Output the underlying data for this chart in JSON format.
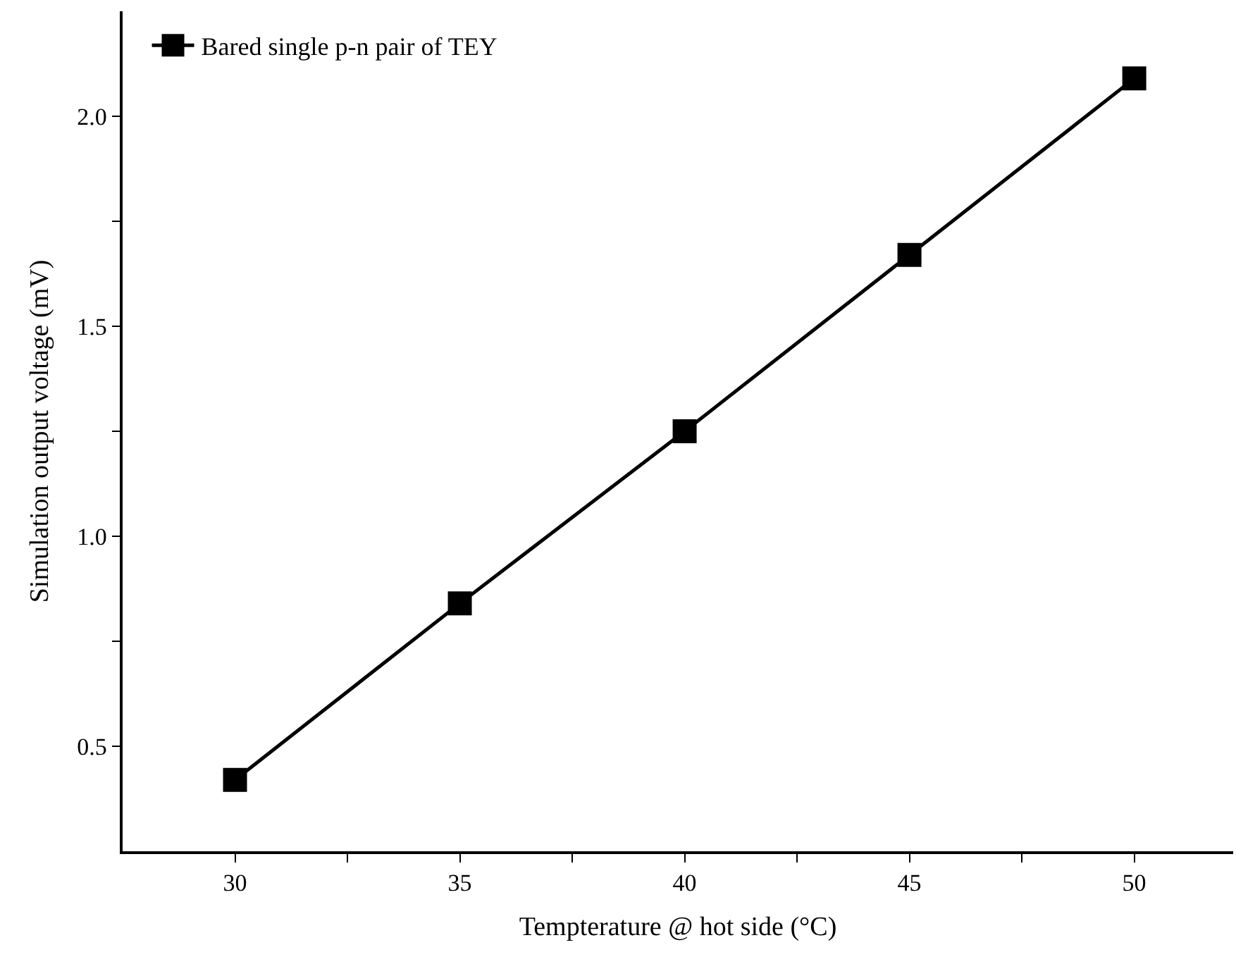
{
  "chart_data": {
    "type": "line",
    "xlabel": "Tempterature @ hot side (°C)",
    "ylabel": "Simulation output voltage (mV)",
    "x": [
      30,
      35,
      40,
      45,
      50
    ],
    "series": [
      {
        "name": "Bared single p-n pair of TEY",
        "color": "#000000",
        "values": [
          0.42,
          0.84,
          1.25,
          1.67,
          2.09
        ]
      }
    ],
    "xlim": [
      27.5,
      52.2
    ],
    "ylim": [
      0.25,
      2.25
    ],
    "xticks": [
      30,
      {
        "value": 32.5,
        "label": null
      },
      35,
      {
        "value": 37.5,
        "label": null
      },
      40,
      {
        "value": 42.5,
        "label": null
      },
      45,
      {
        "value": 47.5,
        "label": null
      },
      50
    ],
    "yticks": [
      0.5,
      {
        "value": 0.75,
        "label": null
      },
      {
        "value": 1,
        "label": "1.0"
      },
      {
        "value": 1.25,
        "label": null
      },
      1.5,
      {
        "value": 1.75,
        "label": null
      },
      {
        "value": 2,
        "label": "2.0"
      }
    ],
    "marker": "square",
    "line_style": "solid",
    "legend": "top left"
  }
}
